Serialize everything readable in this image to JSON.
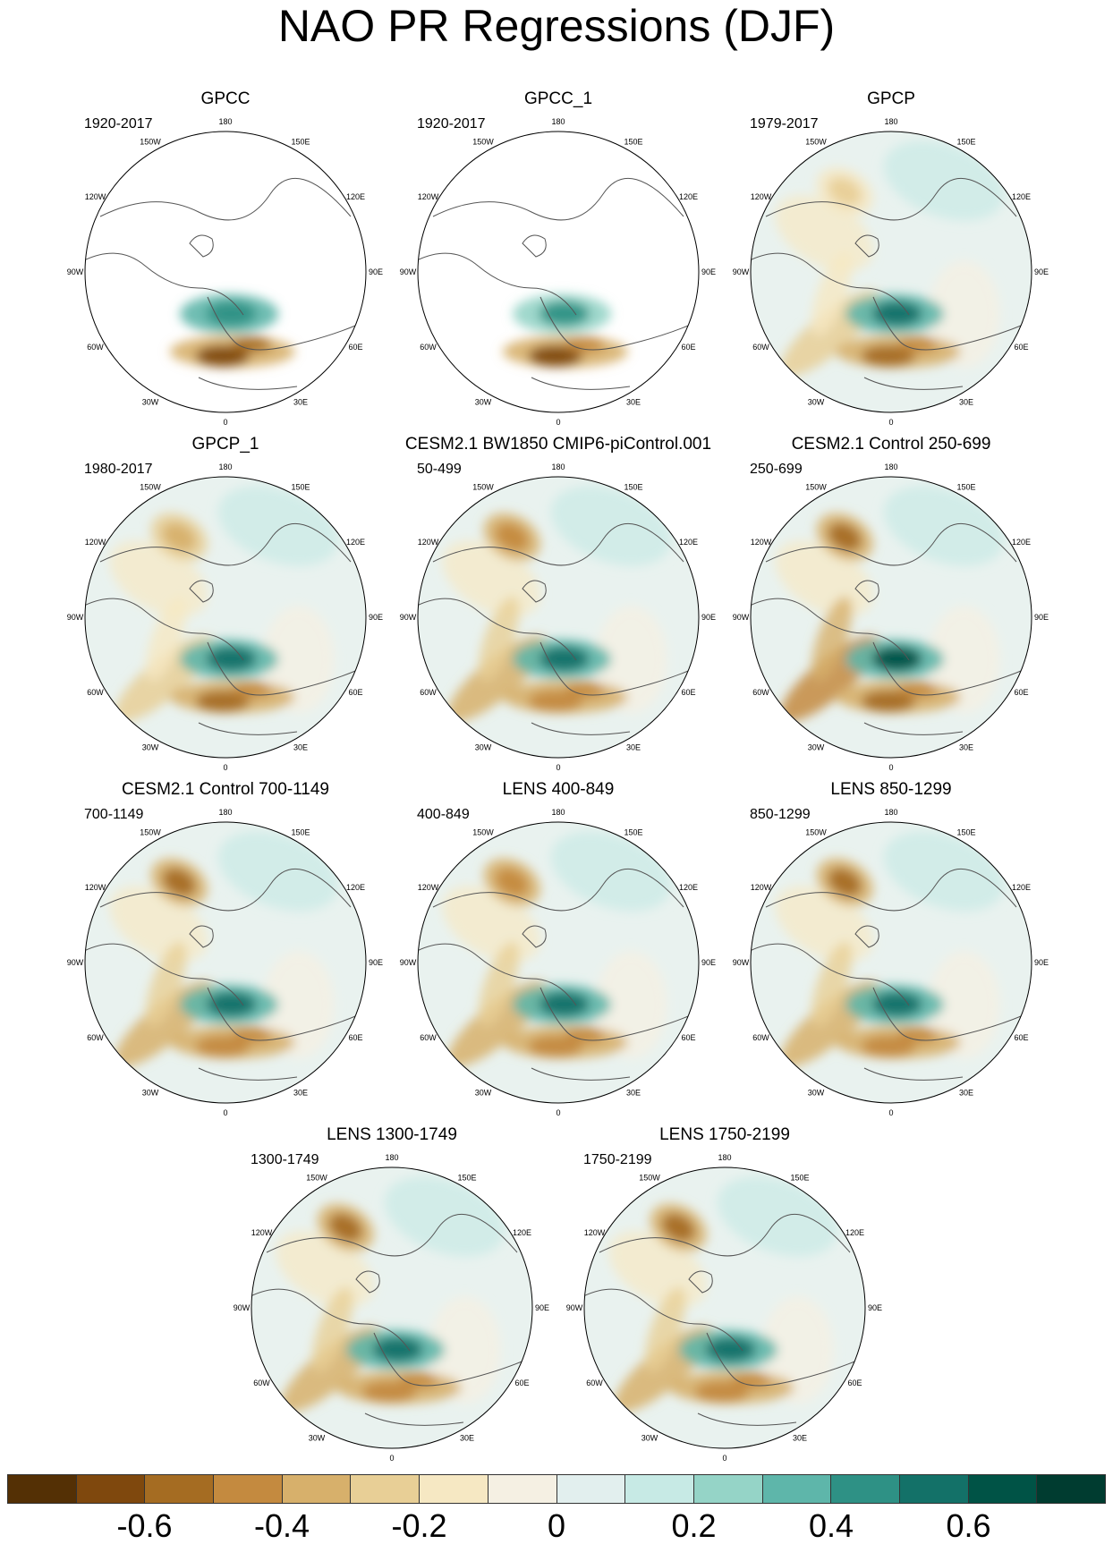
{
  "chart_data": {
    "type": "heatmap",
    "title": "NAO PR Regressions (DJF)",
    "projection": "north polar stereographic",
    "longitude_labels": [
      "180",
      "150E",
      "120E",
      "90E",
      "60E",
      "30E",
      "0",
      "30W",
      "60W",
      "90W",
      "120W",
      "150W"
    ],
    "colorbar": {
      "levels": [
        -0.7,
        -0.6,
        -0.5,
        -0.4,
        -0.3,
        -0.2,
        -0.1,
        0,
        0.1,
        0.2,
        0.3,
        0.4,
        0.5,
        0.6,
        0.7
      ],
      "tick_labels": [
        "-0.6",
        "-0.4",
        "-0.2",
        "0",
        "0.2",
        "0.4",
        "0.6"
      ],
      "colors": [
        "#543005",
        "#7f480d",
        "#a56c22",
        "#c48a3f",
        "#d7b06b",
        "#e8cf96",
        "#f6e8c3",
        "#f5f0e3",
        "#e2efee",
        "#c7eae5",
        "#95d4c7",
        "#5eb6aa",
        "#2e9185",
        "#137168",
        "#005346",
        "#003c30"
      ]
    },
    "panels": [
      {
        "title": "GPCC",
        "years": "1920-2017",
        "coverage": "land",
        "features": {
          "nh_pacific_dry": 0.0,
          "nw_atlantic_dry": 0.0,
          "n_europe_wet": 0.55,
          "med_dry": 0.7,
          "iberia_dry": 0.75
        }
      },
      {
        "title": "GPCC_1",
        "years": "1920-2017",
        "coverage": "land",
        "features": {
          "nh_pacific_dry": 0.0,
          "nw_atlantic_dry": 0.0,
          "n_europe_wet": 0.5,
          "med_dry": 0.6,
          "iberia_dry": 0.7
        }
      },
      {
        "title": "GPCP",
        "years": "1979-2017",
        "coverage": "global",
        "features": {
          "nh_pacific_dry": 0.25,
          "nw_atlantic_dry": 0.3,
          "n_europe_wet": 0.65,
          "med_dry": 0.65,
          "iberia_dry": 0.6
        }
      },
      {
        "title": "GPCP_1",
        "years": "1980-2017",
        "coverage": "global",
        "features": {
          "nh_pacific_dry": 0.35,
          "nw_atlantic_dry": 0.3,
          "n_europe_wet": 0.65,
          "med_dry": 0.65,
          "iberia_dry": 0.6
        }
      },
      {
        "title": "CESM2.1 BW1850 CMIP6-piControl.001",
        "years": "50-499",
        "coverage": "global",
        "features": {
          "nh_pacific_dry": 0.55,
          "nw_atlantic_dry": 0.5,
          "n_europe_wet": 0.6,
          "med_dry": 0.6,
          "iberia_dry": 0.55
        }
      },
      {
        "title": "CESM2.1 Control 250-699",
        "years": "250-699",
        "coverage": "global",
        "features": {
          "nh_pacific_dry": 0.6,
          "nw_atlantic_dry": 0.55,
          "n_europe_wet": 0.7,
          "med_dry": 0.65,
          "iberia_dry": 0.6
        }
      },
      {
        "title": "CESM2.1 Control 700-1149",
        "years": "700-1149",
        "coverage": "global",
        "features": {
          "nh_pacific_dry": 0.6,
          "nw_atlantic_dry": 0.5,
          "n_europe_wet": 0.65,
          "med_dry": 0.6,
          "iberia_dry": 0.55
        }
      },
      {
        "title": "LENS 400-849",
        "years": "400-849",
        "coverage": "global",
        "features": {
          "nh_pacific_dry": 0.55,
          "nw_atlantic_dry": 0.5,
          "n_europe_wet": 0.6,
          "med_dry": 0.55,
          "iberia_dry": 0.55
        }
      },
      {
        "title": "LENS 850-1299",
        "years": "850-1299",
        "coverage": "global",
        "features": {
          "nh_pacific_dry": 0.6,
          "nw_atlantic_dry": 0.5,
          "n_europe_wet": 0.6,
          "med_dry": 0.55,
          "iberia_dry": 0.55
        }
      },
      {
        "title": "LENS 1300-1749",
        "years": "1300-1749",
        "coverage": "global",
        "features": {
          "nh_pacific_dry": 0.6,
          "nw_atlantic_dry": 0.5,
          "n_europe_wet": 0.6,
          "med_dry": 0.55,
          "iberia_dry": 0.55
        }
      },
      {
        "title": "LENS 1750-2199",
        "years": "1750-2199",
        "coverage": "global",
        "features": {
          "nh_pacific_dry": 0.6,
          "nw_atlantic_dry": 0.5,
          "n_europe_wet": 0.6,
          "med_dry": 0.55,
          "iberia_dry": 0.55
        }
      }
    ]
  }
}
